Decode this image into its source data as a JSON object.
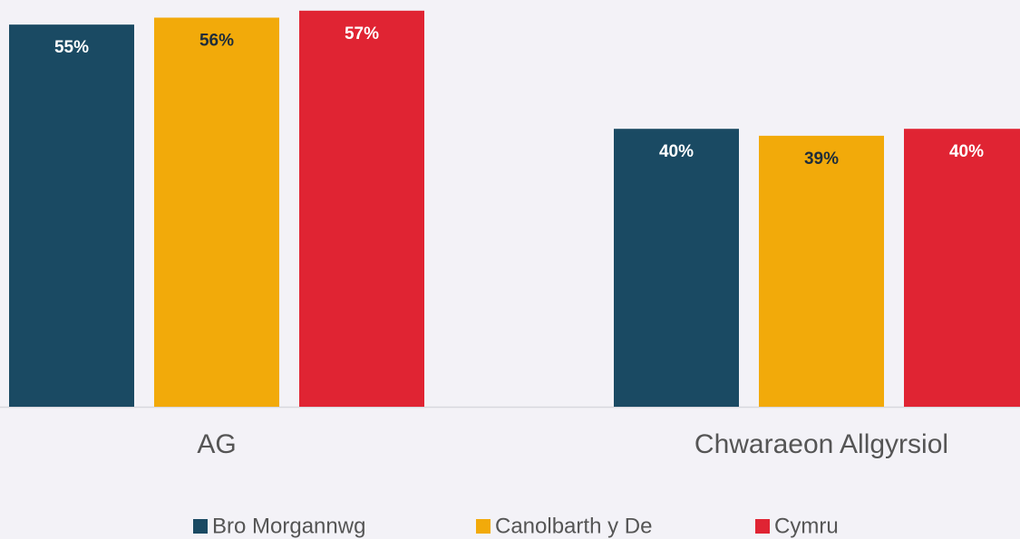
{
  "chart_data": {
    "type": "bar",
    "categories": [
      "AG",
      "Chwaraeon Allgyrsiol"
    ],
    "series": [
      {
        "name": "Bro Morgannwg",
        "color": "#1a4a63",
        "values": [
          55,
          40
        ],
        "value_labels": [
          "55%",
          "40%"
        ]
      },
      {
        "name": "Canolbarth y De",
        "color": "#f2aa0a",
        "values": [
          56,
          39
        ],
        "value_labels": [
          "56%",
          "39%"
        ]
      },
      {
        "name": "Cymru",
        "color": "#e02433",
        "values": [
          57,
          40
        ],
        "value_labels": [
          "57%",
          "40%"
        ]
      }
    ],
    "legend": "bottom"
  }
}
